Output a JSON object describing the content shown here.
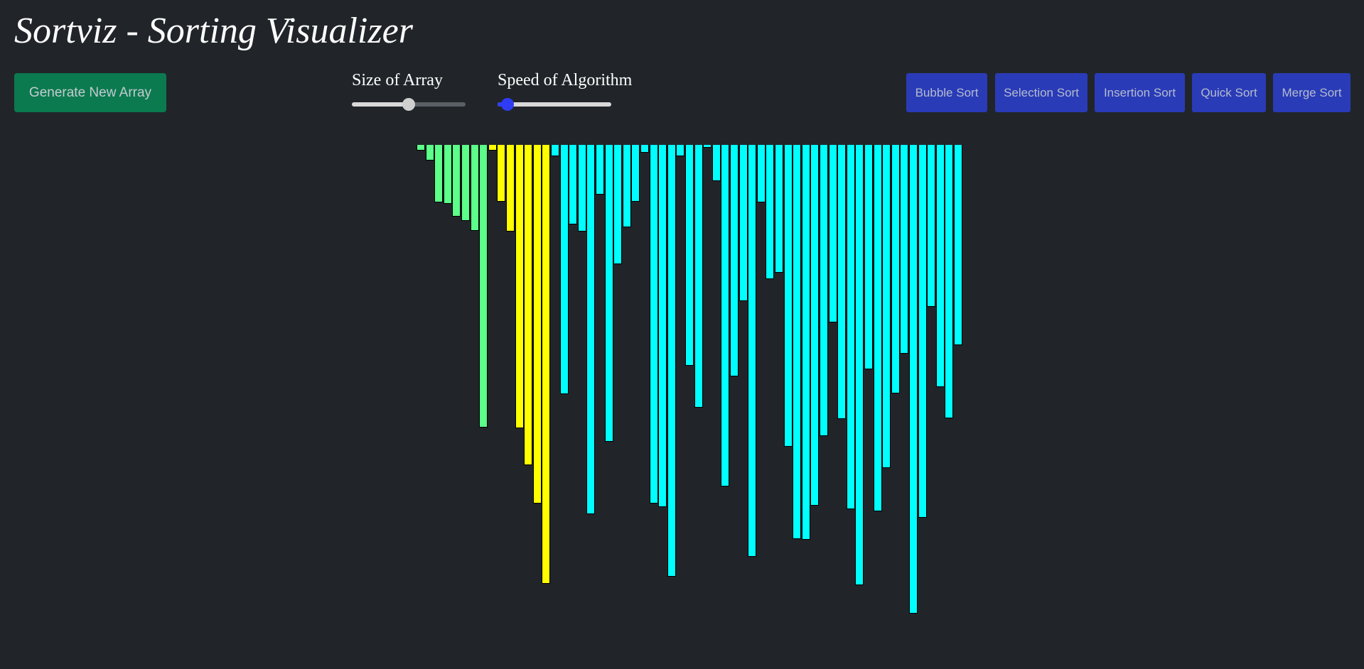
{
  "header": {
    "title": "Sortviz - Sorting Visualizer"
  },
  "controls": {
    "generate_label": "Generate New Array",
    "size_label": "Size of Array",
    "size_value": 0.5,
    "speed_label": "Speed of Algorithm",
    "speed_value": 0.09
  },
  "algorithms": [
    {
      "label": "Bubble Sort"
    },
    {
      "label": "Selection Sort"
    },
    {
      "label": "Insertion Sort"
    },
    {
      "label": "Quick Sort"
    },
    {
      "label": "Merge Sort"
    }
  ],
  "colors": {
    "background": "#212529",
    "sorted": "#5bff8a",
    "comparing": "#ffff00",
    "unsorted": "#00ffff",
    "generate_button": "#0b7a4f",
    "algorithm_button": "#2a3bb8",
    "speed_thumb": "#2f3cf5"
  },
  "array": {
    "values": [
      8,
      22,
      81,
      83,
      101,
      107,
      121,
      398,
      8,
      80,
      122,
      399,
      451,
      505,
      618,
      16,
      351,
      112,
      122,
      520,
      70,
      418,
      168,
      116,
      80,
      11,
      505,
      510,
      608,
      16,
      311,
      370,
      4,
      51,
      481,
      326,
      220,
      580,
      81,
      189,
      180,
      425,
      555,
      556,
      508,
      410,
      250,
      386,
      513,
      620,
      316,
      516,
      455,
      350,
      294,
      660,
      525,
      228,
      341,
      385,
      282
    ],
    "states": [
      "sorted",
      "sorted",
      "sorted",
      "sorted",
      "sorted",
      "sorted",
      "sorted",
      "sorted",
      "comparing",
      "comparing",
      "comparing",
      "comparing",
      "comparing",
      "comparing",
      "comparing",
      "unsorted",
      "unsorted",
      "unsorted",
      "unsorted",
      "unsorted",
      "unsorted",
      "unsorted",
      "unsorted",
      "unsorted",
      "unsorted",
      "unsorted",
      "unsorted",
      "unsorted",
      "unsorted",
      "unsorted",
      "unsorted",
      "unsorted",
      "unsorted",
      "unsorted",
      "unsorted",
      "unsorted",
      "unsorted",
      "unsorted",
      "unsorted",
      "unsorted",
      "unsorted",
      "unsorted",
      "unsorted",
      "unsorted",
      "unsorted",
      "unsorted",
      "unsorted",
      "unsorted",
      "unsorted",
      "unsorted",
      "unsorted",
      "unsorted",
      "unsorted",
      "unsorted",
      "unsorted",
      "unsorted",
      "unsorted",
      "unsorted",
      "unsorted",
      "unsorted",
      "unsorted"
    ]
  }
}
